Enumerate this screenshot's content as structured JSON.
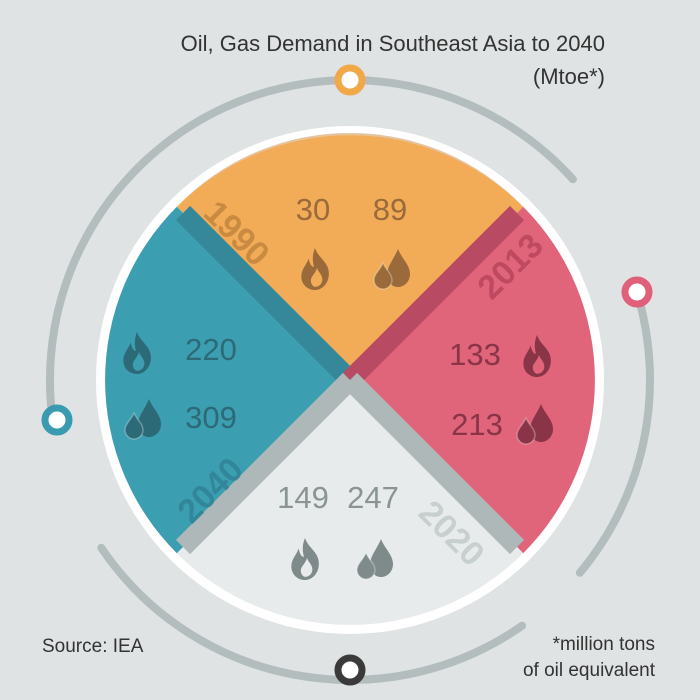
{
  "title": "Oil, Gas Demand in Southeast Asia to 2040",
  "subtitle": "(Mtoe*)",
  "segments": [
    {
      "year": "1990",
      "gas": "30",
      "oil": "89"
    },
    {
      "year": "2013",
      "gas": "133",
      "oil": "213"
    },
    {
      "year": "2020",
      "gas": "149",
      "oil": "247"
    },
    {
      "year": "2040",
      "gas": "220",
      "oil": "309"
    }
  ],
  "source": "Source: IEA",
  "footnote": [
    "*million tons",
    "of oil equivalent"
  ]
}
